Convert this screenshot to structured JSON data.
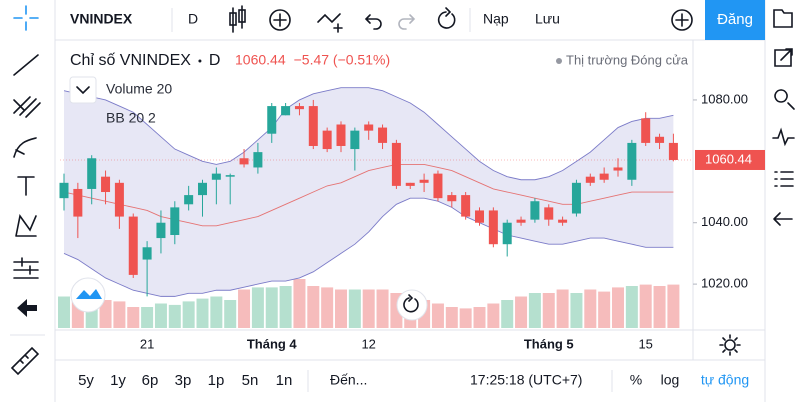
{
  "toolbar": {
    "symbol": "VNINDEX",
    "interval": "D",
    "load": "Nạp",
    "save": "Lưu",
    "publish": "Đăng"
  },
  "bottom_bar": {
    "ranges": [
      "5y",
      "1y",
      "6p",
      "3p",
      "1p",
      "5n",
      "1n"
    ],
    "goto": "Đến...",
    "time": "17:25:18 (UTC+7)",
    "percent": "%",
    "log": "log",
    "auto": "tự động"
  },
  "chart_data": {
    "type": "candlestick",
    "title": "Chỉ số VNINDEX",
    "interval": "D",
    "change": "−5.47 (−0.51%)",
    "market_status": "Thị trường Đóng cửa",
    "last_price": {
      "value": 1060.44,
      "label": "1060.44"
    },
    "indicators": [
      "Volume 20",
      "BB 20 2"
    ],
    "categories": [
      null,
      null,
      null,
      null,
      null,
      null,
      "21",
      null,
      null,
      null,
      null,
      null,
      null,
      null,
      null,
      "Tháng 4",
      null,
      null,
      null,
      null,
      null,
      null,
      "12",
      null,
      null,
      null,
      null,
      null,
      null,
      null,
      null,
      null,
      null,
      null,
      null,
      "Tháng 5",
      null,
      null,
      null,
      null,
      null,
      null,
      "15",
      null,
      null
    ],
    "open": [
      1048,
      1051,
      1051,
      1055,
      1053,
      1042,
      1028,
      1035,
      1036,
      1046,
      1049,
      1054,
      1055,
      1061,
      1058,
      1069,
      1075,
      1078,
      1078,
      1070,
      1072,
      1064,
      1072,
      1071,
      1066,
      1053,
      1054,
      1056,
      1049,
      1049,
      1044,
      1044,
      1033,
      1041,
      1041,
      1045,
      1041,
      1043,
      1055,
      1056,
      1058,
      1054,
      1074,
      1068,
      1066
    ],
    "close": [
      1053,
      1042,
      1061,
      1050,
      1042,
      1023,
      1032,
      1040,
      1045,
      1049,
      1053,
      1056,
      1055.5,
      1059,
      1063,
      1078,
      1078,
      1077,
      1065,
      1064,
      1065,
      1070,
      1070,
      1066,
      1052,
      1052,
      1053,
      1048,
      1047,
      1042,
      1040,
      1033,
      1040,
      1040,
      1047,
      1041,
      1040,
      1053,
      1053,
      1054,
      1057,
      1066,
      1066,
      1066,
      1060.44
    ],
    "high": [
      1056,
      1053,
      1062,
      1057,
      1054,
      1043,
      1034,
      1044,
      1047,
      1052,
      1054,
      1058,
      1056,
      1064,
      1066,
      1079,
      1079,
      1079,
      1080,
      1071,
      1073,
      1071,
      1073,
      1072,
      1067,
      1053,
      1056,
      1057,
      1050,
      1050,
      1045,
      1045,
      1041,
      1042,
      1048,
      1046,
      1042,
      1054,
      1056,
      1058,
      1061,
      1067,
      1076,
      1069,
      1069
    ],
    "low": [
      1044,
      1035,
      1046,
      1046,
      1038,
      1022,
      1016,
      1030,
      1033,
      1044,
      1042,
      1046,
      1046,
      1058,
      1056,
      1066,
      1075,
      1075,
      1064,
      1063,
      1063,
      1057,
      1067,
      1064,
      1051,
      1051,
      1050,
      1047,
      1045,
      1041,
      1039,
      1032,
      1029,
      1039,
      1040,
      1039,
      1039,
      1042,
      1052,
      1053,
      1055,
      1052,
      1065,
      1064,
      1060
    ],
    "volume": [
      45,
      40,
      45,
      40,
      38,
      30,
      30,
      35,
      33,
      38,
      42,
      45,
      40,
      55,
      58,
      58,
      60,
      70,
      60,
      58,
      55,
      55,
      55,
      55,
      50,
      48,
      40,
      35,
      30,
      28,
      30,
      35,
      40,
      45,
      50,
      50,
      55,
      50,
      55,
      52,
      58,
      60,
      62,
      60,
      62
    ],
    "volume_lim": [
      0,
      100
    ],
    "bb": {
      "upper": [
        1083,
        1082,
        1081,
        1080,
        1078,
        1076,
        1072,
        1068,
        1064,
        1062,
        1060,
        1059,
        1060,
        1063,
        1067,
        1071,
        1077,
        1080,
        1082,
        1083,
        1084,
        1084,
        1084,
        1083,
        1081,
        1079,
        1076,
        1072,
        1068,
        1064,
        1060,
        1057,
        1055,
        1054,
        1054,
        1055,
        1057,
        1060,
        1063,
        1067,
        1071,
        1073,
        1074,
        1074,
        1075
      ],
      "middle": [
        1050,
        1049,
        1048,
        1047,
        1046,
        1045,
        1044,
        1042,
        1041,
        1040,
        1039,
        1039,
        1040,
        1041,
        1042,
        1044,
        1046,
        1048,
        1050,
        1052,
        1053,
        1055,
        1057,
        1058,
        1059,
        1059,
        1059,
        1058,
        1057,
        1055,
        1053,
        1051,
        1050,
        1049,
        1048,
        1047,
        1046,
        1046,
        1047,
        1048,
        1049,
        1050,
        1050,
        1050,
        1050
      ],
      "lower": [
        1030,
        1028,
        1025,
        1022,
        1020,
        1018,
        1017,
        1016,
        1016,
        1017,
        1017,
        1018,
        1018,
        1019,
        1020,
        1021,
        1021,
        1022,
        1024,
        1027,
        1030,
        1033,
        1037,
        1042,
        1046,
        1048,
        1048,
        1047,
        1045,
        1042,
        1040,
        1038,
        1036,
        1035,
        1034,
        1033,
        1033,
        1034,
        1035,
        1035,
        1034,
        1033,
        1032,
        1032,
        1032
      ]
    },
    "up_color": "#26a69a",
    "down_color": "#ef5350",
    "volume_up_color": "#b5e0cf",
    "volume_down_color": "#f6bcbc",
    "band_color": "#7b7bc8",
    "middle_color": "#e57373",
    "ylim": [
      1005.7,
      1097.9
    ],
    "yticks": [
      {
        "value": 1020,
        "label": "1020.00"
      },
      {
        "value": 1040,
        "label": "1040.00"
      },
      {
        "value": 1080,
        "label": "1080.00"
      }
    ]
  }
}
